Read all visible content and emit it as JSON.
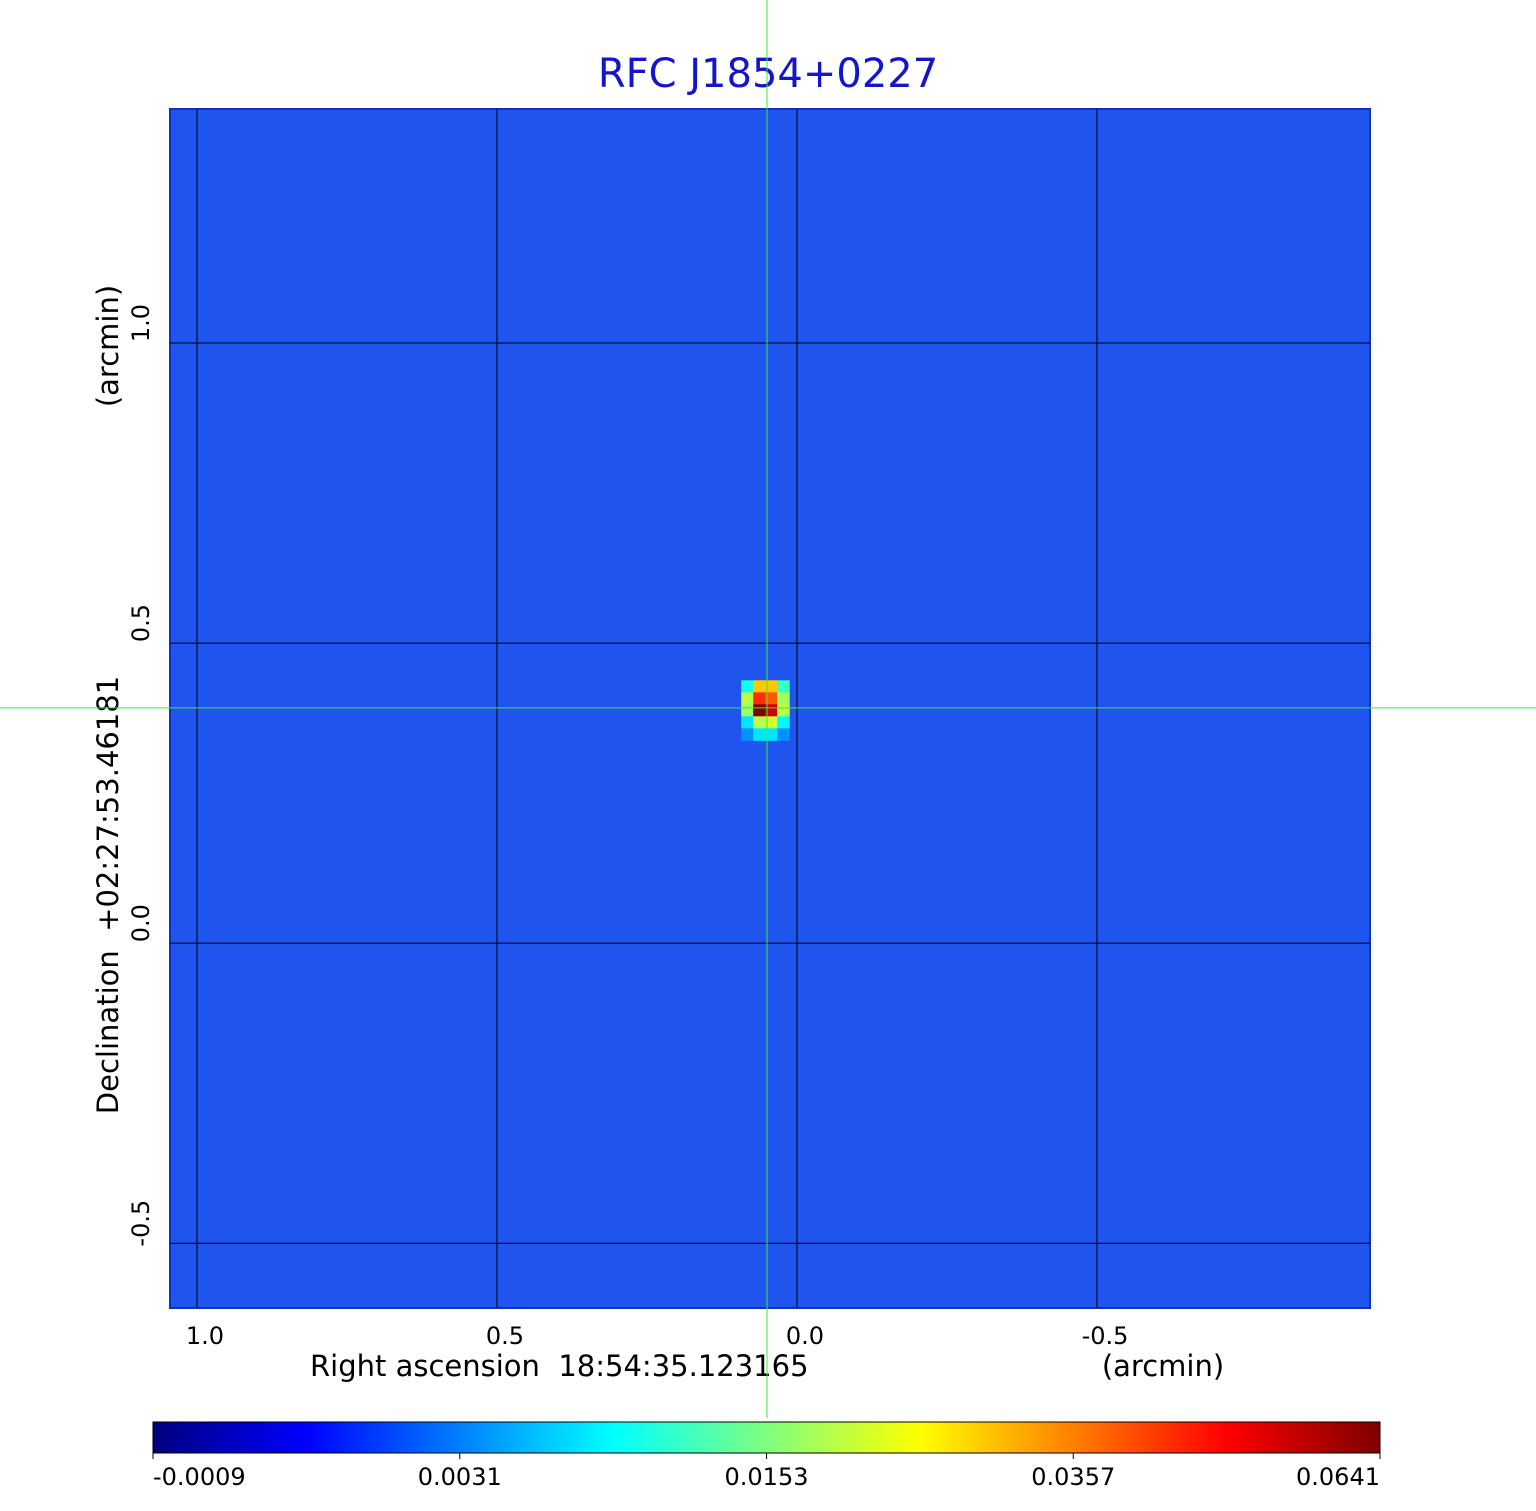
{
  "chart_data": {
    "type": "heatmap",
    "title": "RFC J1854+0227",
    "xlabel": "Right ascension  18:54:35.123165",
    "xunit": "(arcmin)",
    "ylabel": "Declination  +02:27:53.46181",
    "yunit": "(arcmin)",
    "xlim": [
      1.045,
      -0.955
    ],
    "ylim": [
      -0.608,
      1.39
    ],
    "xticks": [
      {
        "value": 1,
        "label": "1.0"
      },
      0.5,
      {
        "value": 0,
        "label": "0.0"
      },
      -0.5
    ],
    "yticks": [
      -0.5,
      {
        "value": 0,
        "label": "0.0"
      },
      0.5,
      {
        "value": 1,
        "label": "1.0"
      }
    ],
    "grid": true,
    "x": [
      0.083,
      0.063,
      0.043,
      0.023
    ],
    "y": [
      0.428,
      0.408,
      0.388,
      0.368,
      0.348
    ],
    "z": [
      [
        0.01,
        0.03,
        0.03,
        0.012
      ],
      [
        0.02,
        0.045,
        0.04,
        0.018
      ],
      [
        0.018,
        0.0641,
        0.055,
        0.02
      ],
      [
        0.008,
        0.02,
        0.022,
        0.009
      ],
      [
        0.004,
        0.008,
        0.008,
        0.004
      ]
    ],
    "cticks": [
      -0.0009,
      0.0031,
      0.0153,
      0.0357,
      0.0641
    ],
    "colormap": [
      "#00007f",
      "#0000ff",
      "#007fff",
      "#00ffff",
      "#7fff7f",
      "#ffff00",
      "#ff7f00",
      "#ff0000",
      "#7f0000"
    ],
    "crosshair": {
      "x": 0.05,
      "y": 0.392,
      "color": "#33ee33"
    }
  }
}
